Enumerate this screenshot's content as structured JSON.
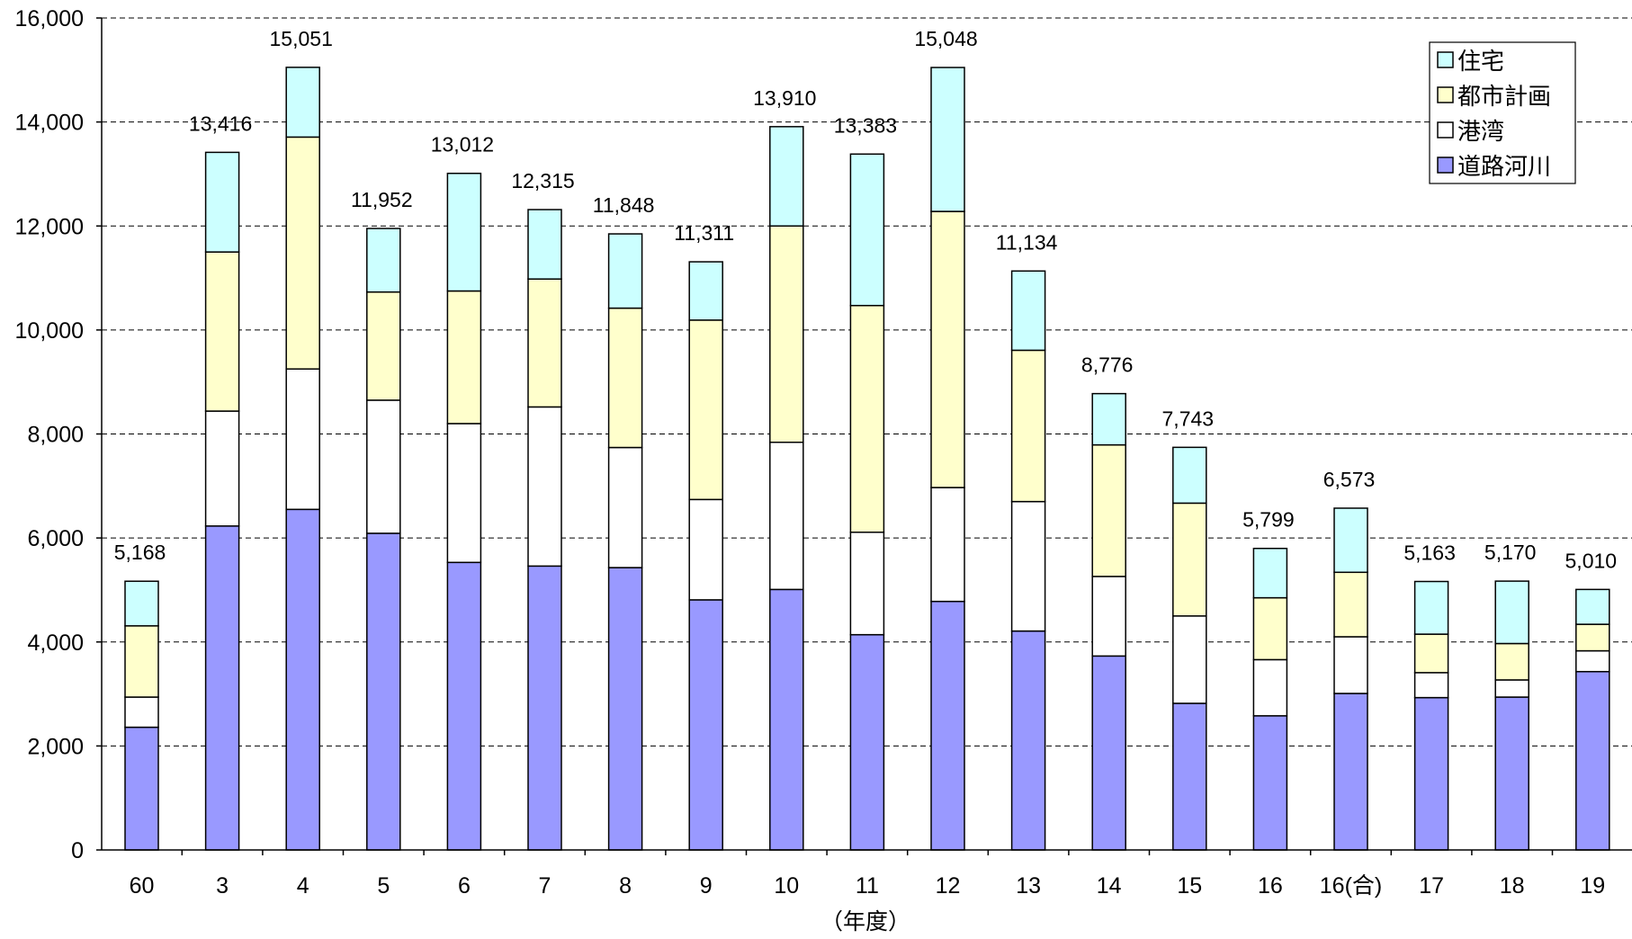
{
  "chart_data": {
    "type": "bar",
    "stacked": true,
    "categories": [
      "60",
      "3",
      "4",
      "5",
      "6",
      "7",
      "8",
      "9",
      "10",
      "11",
      "12",
      "13",
      "14",
      "15",
      "16",
      "16(合)",
      "17",
      "18",
      "19"
    ],
    "series": [
      {
        "name": "道路河川",
        "color": "#9999ff",
        "values": [
          2360,
          6230,
          6550,
          6090,
          5530,
          5460,
          5430,
          4810,
          5010,
          4140,
          4780,
          4210,
          3730,
          2820,
          2580,
          3010,
          2930,
          2940,
          3430
        ]
      },
      {
        "name": "港湾",
        "color": "#ffffff",
        "values": [
          580,
          2210,
          2700,
          2560,
          2670,
          3060,
          2310,
          1930,
          2830,
          1970,
          2190,
          2490,
          1530,
          1680,
          1080,
          1090,
          480,
          330,
          400
        ]
      },
      {
        "name": "都市計画",
        "color": "#ffffcc",
        "values": [
          1370,
          3060,
          4460,
          2080,
          2550,
          2460,
          2680,
          3450,
          4160,
          4360,
          5310,
          2910,
          2530,
          2170,
          1190,
          1240,
          740,
          700,
          510
        ]
      },
      {
        "name": "住宅",
        "color": "#ccffff",
        "values": [
          858,
          1916,
          1341,
          1222,
          2262,
          1335,
          1428,
          1121,
          1910,
          2913,
          2768,
          1524,
          986,
          1073,
          949,
          1233,
          1013,
          1200,
          670
        ]
      }
    ],
    "totals": [
      "5,168",
      "13,416",
      "15,051",
      "11,952",
      "13,012",
      "12,315",
      "11,848",
      "11,311",
      "13,910",
      "13,383",
      "15,048",
      "11,134",
      "8,776",
      "7,743",
      "5,799",
      "6,573",
      "5,163",
      "5,170",
      "5,010"
    ],
    "totals_numeric": [
      5168,
      13416,
      15051,
      11952,
      13012,
      12315,
      11848,
      11311,
      13910,
      13383,
      15048,
      11134,
      8776,
      7743,
      5799,
      6573,
      5163,
      5170,
      5010
    ],
    "y_ticks": [
      "0",
      "2,000",
      "4,000",
      "6,000",
      "8,000",
      "10,000",
      "12,000",
      "14,000",
      "16,000"
    ],
    "ylim": [
      0,
      16000
    ],
    "xlabel": "（年度）",
    "ylabel": "",
    "title": "",
    "grid": "horizontal dashed",
    "legend_position": "top-right",
    "legend_order": [
      "住宅",
      "都市計画",
      "港湾",
      "道路河川"
    ]
  }
}
